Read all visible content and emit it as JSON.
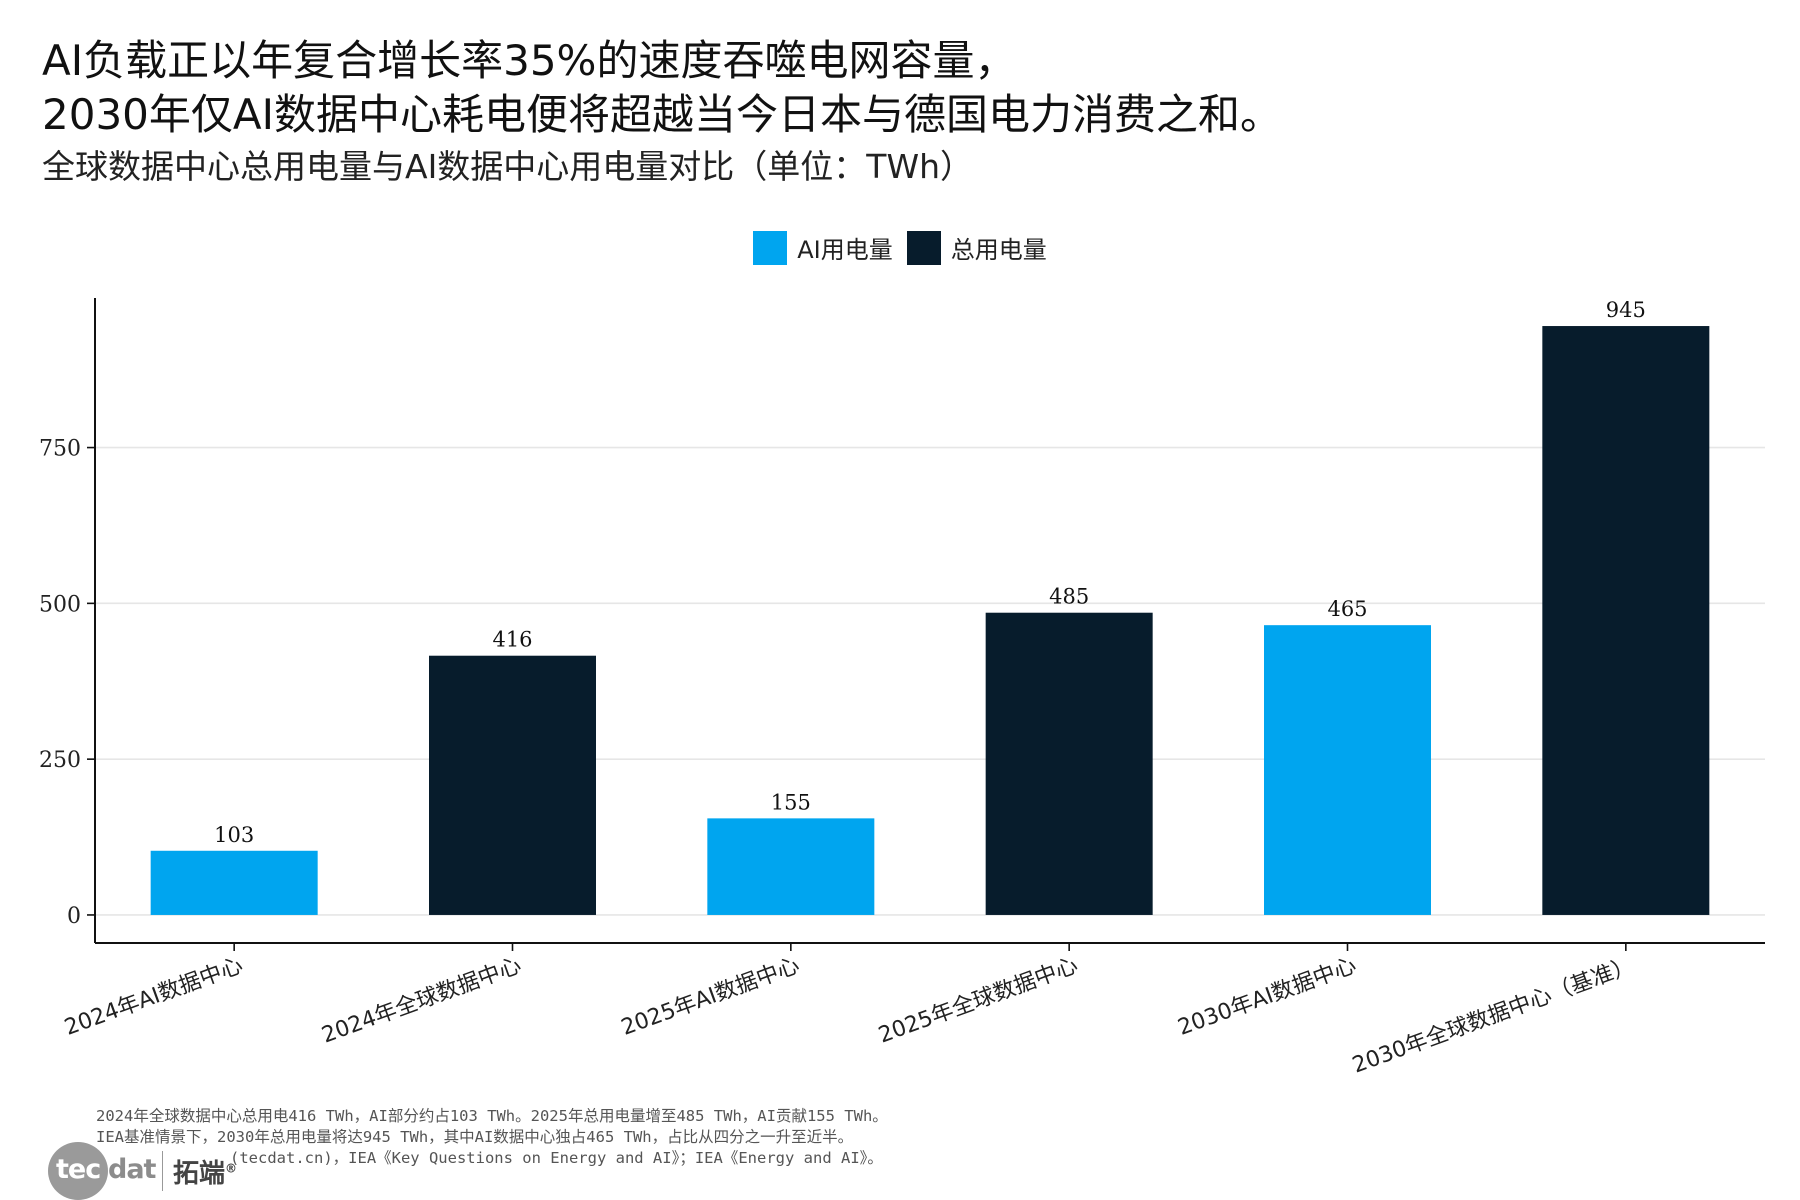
{
  "header": {
    "title_line1": "AI负载正以年复合增长率35%的速度吞噬电网容量，",
    "title_line2": "2030年仅AI数据中心耗电便将超越当今日本与德国电力消费之和。",
    "subtitle": "全球数据中心总用电量与AI数据中心用电量对比（单位：TWh）"
  },
  "legend": [
    {
      "label": "AI用电量",
      "color": "#00A5EF"
    },
    {
      "label": "总用电量",
      "color": "#071C2C"
    }
  ],
  "chart_data": {
    "type": "bar",
    "categories": [
      "2024年AI数据中心",
      "2024年全球数据中心",
      "2025年AI数据中心",
      "2025年全球数据中心",
      "2030年AI数据中心",
      "2030年全球数据中心（基准）"
    ],
    "values": [
      103,
      416,
      155,
      485,
      465,
      945
    ],
    "bar_series": [
      "AI用电量",
      "总用电量",
      "AI用电量",
      "总用电量",
      "AI用电量",
      "总用电量"
    ],
    "series": [
      {
        "name": "AI用电量",
        "color": "#00A5EF"
      },
      {
        "name": "总用电量",
        "color": "#071C2C"
      }
    ],
    "yticks": [
      0,
      250,
      500,
      750
    ],
    "ylim": [
      -45,
      990
    ],
    "grid": true,
    "legend_position": "top-center",
    "title": "全球数据中心总用电量与AI数据中心用电量对比（单位：TWh）",
    "xlabel": "",
    "ylabel": ""
  },
  "footnote": {
    "line1": "2024年全球数据中心总用电416 TWh，AI部分约占103 TWh。2025年总用电量增至485 TWh，AI贡献155 TWh。",
    "line2": "IEA基准情景下，2030年总用电量将达945 TWh，其中AI数据中心独占465 TWh，占比从四分之一升至近半。",
    "line3": "(tecdat.cn)，IEA《Key Questions on Energy and AI》；IEA《Energy and AI》。"
  },
  "logo": {
    "latin_part1": "tec",
    "latin_part2": "dat",
    "chinese": "拓端",
    "mark": "®"
  }
}
